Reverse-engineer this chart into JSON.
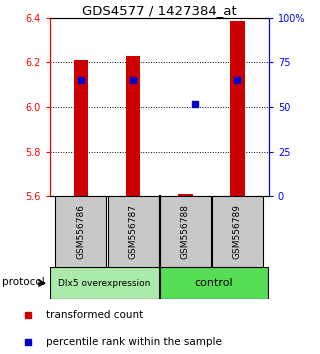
{
  "title": "GDS4577 / 1427384_at",
  "samples": [
    "GSM556786",
    "GSM556787",
    "GSM556788",
    "GSM556789"
  ],
  "red_bar_tops": [
    6.21,
    6.23,
    5.612,
    6.385
  ],
  "red_bar_bottom": 5.6,
  "blue_percentile": [
    65,
    65,
    52,
    65
  ],
  "ylim": [
    5.6,
    6.4
  ],
  "yticks_left": [
    5.6,
    5.8,
    6.0,
    6.2,
    6.4
  ],
  "yticks_right": [
    0,
    25,
    50,
    75,
    100
  ],
  "group1_label": "Dlx5 overexpression",
  "group1_color": "#aaeaaa",
  "group2_label": "control",
  "group2_color": "#55dd55",
  "bar_color": "#cc0000",
  "blue_color": "#0000cc",
  "protocol_label": "protocol",
  "group_box_color": "#c8c8c8",
  "grid_lines": [
    5.8,
    6.0,
    6.2
  ],
  "legend1": "transformed count",
  "legend2": "percentile rank within the sample"
}
